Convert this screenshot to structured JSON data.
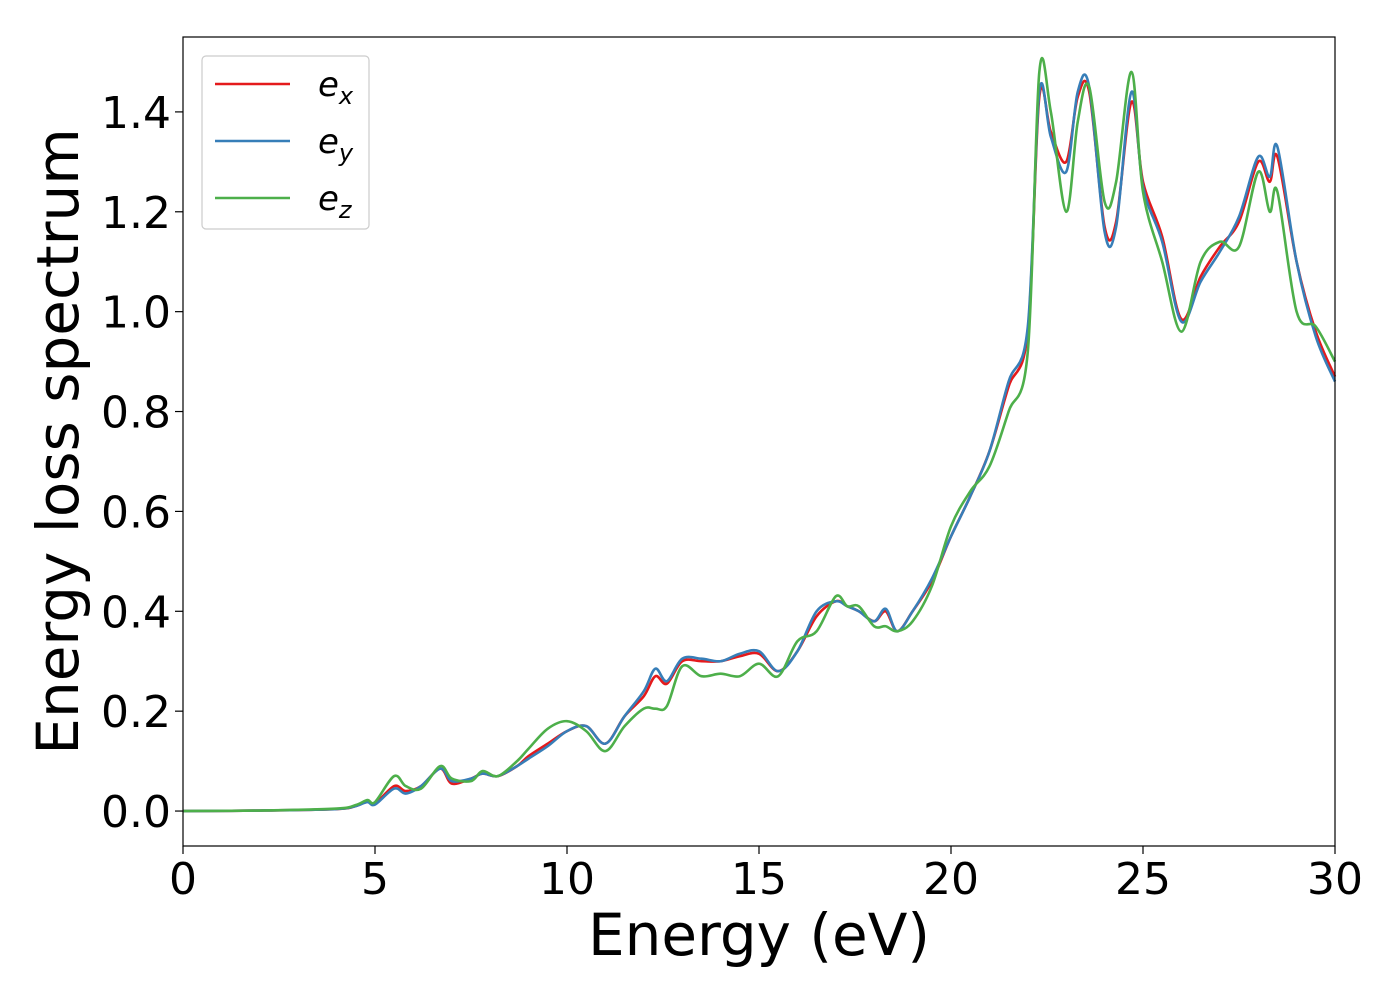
{
  "chart_data": {
    "type": "line",
    "xlabel": "Energy (eV)",
    "ylabel": "Energy loss spectrum",
    "xlim": [
      0,
      30
    ],
    "ylim": [
      -0.07,
      1.55
    ],
    "xticks": [
      0,
      5,
      10,
      15,
      20,
      25,
      30
    ],
    "xtick_labels": [
      "0",
      "5",
      "10",
      "15",
      "20",
      "25",
      "30"
    ],
    "yticks": [
      0.0,
      0.2,
      0.4,
      0.6,
      0.8,
      1.0,
      1.2,
      1.4
    ],
    "ytick_labels": [
      "0.0",
      "0.2",
      "0.4",
      "0.6",
      "0.8",
      "1.0",
      "1.2",
      "1.4"
    ],
    "grid": false,
    "legend_position": "top-left",
    "series": [
      {
        "name": "e_x",
        "label_base": "e",
        "label_sub": "x",
        "color": "#e41a1c",
        "x": [
          0,
          2,
          4,
          4.5,
          4.8,
          5,
          5.5,
          5.8,
          6.2,
          6.7,
          7,
          7.5,
          7.8,
          8.2,
          8.7,
          9,
          9.5,
          10,
          10.5,
          11,
          11.5,
          12,
          12.3,
          12.6,
          13,
          13.5,
          14,
          14.5,
          15,
          15.5,
          16,
          16.5,
          17,
          17.3,
          17.6,
          18,
          18.3,
          18.6,
          19,
          19.5,
          20,
          20.5,
          21,
          21.5,
          22,
          22.3,
          22.6,
          23,
          23.3,
          23.6,
          24,
          24.3,
          24.7,
          25,
          25.5,
          26,
          26.5,
          27,
          27.5,
          28,
          28.3,
          28.5,
          29,
          29.5,
          30
        ],
        "y": [
          0,
          0.001,
          0.004,
          0.01,
          0.02,
          0.015,
          0.05,
          0.04,
          0.05,
          0.085,
          0.055,
          0.065,
          0.075,
          0.07,
          0.09,
          0.11,
          0.135,
          0.16,
          0.17,
          0.135,
          0.19,
          0.23,
          0.27,
          0.255,
          0.3,
          0.3,
          0.3,
          0.31,
          0.315,
          0.28,
          0.32,
          0.39,
          0.42,
          0.41,
          0.4,
          0.38,
          0.4,
          0.36,
          0.4,
          0.46,
          0.55,
          0.63,
          0.72,
          0.85,
          0.96,
          1.43,
          1.36,
          1.3,
          1.43,
          1.44,
          1.17,
          1.18,
          1.42,
          1.26,
          1.15,
          0.985,
          1.07,
          1.13,
          1.18,
          1.3,
          1.26,
          1.31,
          1.1,
          0.96,
          0.87
        ]
      },
      {
        "name": "e_y",
        "label_base": "e",
        "label_sub": "y",
        "color": "#377eb8",
        "x": [
          0,
          2,
          4,
          4.5,
          4.8,
          5,
          5.5,
          5.8,
          6.2,
          6.7,
          7,
          7.5,
          7.8,
          8.2,
          8.7,
          9,
          9.5,
          10,
          10.5,
          11,
          11.5,
          12,
          12.3,
          12.6,
          13,
          13.5,
          14,
          14.5,
          15,
          15.5,
          16,
          16.5,
          17,
          17.3,
          17.6,
          18,
          18.3,
          18.6,
          19,
          19.5,
          20,
          20.5,
          21,
          21.5,
          22,
          22.3,
          22.6,
          23,
          23.3,
          23.6,
          24,
          24.3,
          24.7,
          25,
          25.5,
          26,
          26.5,
          27,
          27.5,
          28,
          28.3,
          28.5,
          29,
          29.5,
          30
        ],
        "y": [
          0,
          0.001,
          0.004,
          0.01,
          0.018,
          0.013,
          0.045,
          0.035,
          0.05,
          0.085,
          0.06,
          0.065,
          0.075,
          0.07,
          0.09,
          0.105,
          0.13,
          0.16,
          0.17,
          0.135,
          0.19,
          0.24,
          0.285,
          0.26,
          0.305,
          0.305,
          0.3,
          0.315,
          0.32,
          0.28,
          0.32,
          0.4,
          0.42,
          0.41,
          0.4,
          0.38,
          0.405,
          0.36,
          0.4,
          0.465,
          0.55,
          0.63,
          0.72,
          0.86,
          0.97,
          1.44,
          1.35,
          1.28,
          1.44,
          1.45,
          1.16,
          1.17,
          1.44,
          1.25,
          1.14,
          0.98,
          1.06,
          1.12,
          1.19,
          1.31,
          1.27,
          1.33,
          1.1,
          0.95,
          0.86
        ]
      },
      {
        "name": "e_z",
        "label_base": "e",
        "label_sub": "z",
        "color": "#4daf4a",
        "x": [
          0,
          2,
          4,
          4.5,
          4.8,
          5,
          5.5,
          5.8,
          6.2,
          6.7,
          7,
          7.5,
          7.8,
          8.2,
          8.7,
          9,
          9.5,
          10,
          10.5,
          11,
          11.5,
          12,
          12.3,
          12.6,
          13,
          13.5,
          14,
          14.5,
          15,
          15.5,
          16,
          16.5,
          17,
          17.3,
          17.6,
          18,
          18.3,
          18.6,
          19,
          19.5,
          20,
          20.5,
          21,
          21.5,
          22,
          22.3,
          22.6,
          23,
          23.3,
          23.6,
          24,
          24.3,
          24.7,
          25,
          25.5,
          26,
          26.5,
          27,
          27.5,
          28,
          28.3,
          28.5,
          29,
          29.5,
          30
        ],
        "y": [
          0,
          0.001,
          0.005,
          0.012,
          0.022,
          0.018,
          0.07,
          0.05,
          0.045,
          0.09,
          0.065,
          0.06,
          0.08,
          0.07,
          0.1,
          0.125,
          0.165,
          0.18,
          0.16,
          0.12,
          0.17,
          0.205,
          0.205,
          0.21,
          0.29,
          0.27,
          0.275,
          0.27,
          0.295,
          0.27,
          0.34,
          0.36,
          0.43,
          0.41,
          0.41,
          0.37,
          0.37,
          0.36,
          0.38,
          0.45,
          0.57,
          0.64,
          0.69,
          0.8,
          0.92,
          1.48,
          1.4,
          1.2,
          1.38,
          1.45,
          1.22,
          1.26,
          1.48,
          1.24,
          1.1,
          0.96,
          1.1,
          1.14,
          1.13,
          1.28,
          1.2,
          1.24,
          1.0,
          0.97,
          0.9
        ]
      }
    ]
  }
}
